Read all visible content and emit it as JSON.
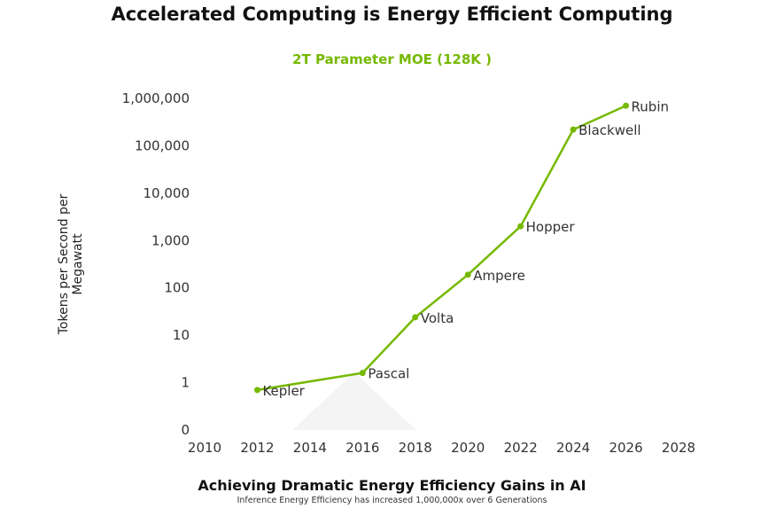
{
  "chart_data": {
    "type": "line",
    "title": "Accelerated Computing is Energy Efficient Computing",
    "subtitle": "2T Parameter MOE (128K )",
    "xlabel": "",
    "ylabel": "Tokens per Second per Megawatt",
    "footer_title": "Achieving Dramatic Energy Efficiency Gains in AI",
    "footer_subtitle": "Inference Energy Efficiency has increased 1,000,000x over 6 Generations",
    "yscale": "log",
    "xlim": [
      2010,
      2028
    ],
    "ylim_decades": [
      -1,
      6
    ],
    "x_ticks": [
      "2010",
      "2012",
      "2014",
      "2016",
      "2018",
      "2020",
      "2022",
      "2024",
      "2026",
      "2028"
    ],
    "y_ticks": [
      "0",
      "1",
      "10",
      "100",
      "1,000",
      "10,000",
      "100,000",
      "1,000,000"
    ],
    "grid": false,
    "color": "#76b900",
    "series": [
      {
        "name": "Tokens per Second per Megawatt",
        "points": [
          {
            "label": "Kepler",
            "x": 2012,
            "y": 0.7
          },
          {
            "label": "Pascal",
            "x": 2016,
            "y": 1.6
          },
          {
            "label": "Volta",
            "x": 2018,
            "y": 24
          },
          {
            "label": "Ampere",
            "x": 2020,
            "y": 190
          },
          {
            "label": "Hopper",
            "x": 2022,
            "y": 2000
          },
          {
            "label": "Blackwell",
            "x": 2024,
            "y": 220000
          },
          {
            "label": "Rubin",
            "x": 2026,
            "y": 700000
          }
        ]
      }
    ]
  }
}
